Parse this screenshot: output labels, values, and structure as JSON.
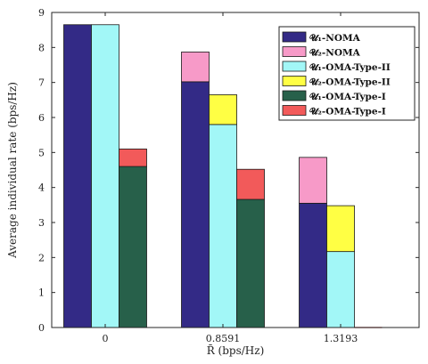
{
  "chart_data": {
    "type": "bar",
    "layout": "stacked-grouped",
    "categories": [
      "0",
      "0.8591",
      "1.3193"
    ],
    "xlabel": "R̄ (bps/Hz)",
    "ylabel": "Average individual rate (bps/Hz)",
    "ylim": [
      0,
      9
    ],
    "yticks": [
      0,
      1,
      2,
      3,
      4,
      5,
      6,
      7,
      8,
      9
    ],
    "grid": false,
    "legend_position": "top-right",
    "groups": [
      {
        "name": "NOMA",
        "base": {
          "name": "𝓤₁-NOMA",
          "color": "#332a86",
          "values": [
            8.65,
            7.02,
            3.55
          ]
        },
        "top": {
          "name": "𝓤₂-NOMA",
          "color": "#f79ac8",
          "values": [
            0.0,
            0.85,
            1.31
          ]
        }
      },
      {
        "name": "OMA-Type-II",
        "base": {
          "name": "𝓤₁-OMA-Type-II",
          "color": "#a2f7f7",
          "values": [
            8.65,
            5.8,
            2.17
          ]
        },
        "top": {
          "name": "𝓤₂-OMA-Type-II",
          "color": "#ffff44",
          "values": [
            0.0,
            0.85,
            1.31
          ]
        }
      },
      {
        "name": "OMA-Type-I",
        "base": {
          "name": "𝓤₁-OMA-Type-I",
          "color": "#27604a",
          "values": [
            4.6,
            3.66,
            0.0
          ]
        },
        "top": {
          "name": "𝓤₂-OMA-Type-I",
          "color": "#f25a5a",
          "values": [
            0.5,
            0.86,
            0.0
          ]
        }
      }
    ],
    "legend": [
      {
        "label": "𝓤₁-NOMA",
        "color": "#332a86"
      },
      {
        "label": "𝓤₂-NOMA",
        "color": "#f79ac8"
      },
      {
        "label": "𝓤₁-OMA-Type-II",
        "color": "#a2f7f7"
      },
      {
        "label": "𝓤₂-OMA-Type-II",
        "color": "#ffff44"
      },
      {
        "label": "𝓤₁-OMA-Type-I",
        "color": "#27604a"
      },
      {
        "label": "𝓤₂-OMA-Type-I",
        "color": "#f25a5a"
      }
    ]
  }
}
